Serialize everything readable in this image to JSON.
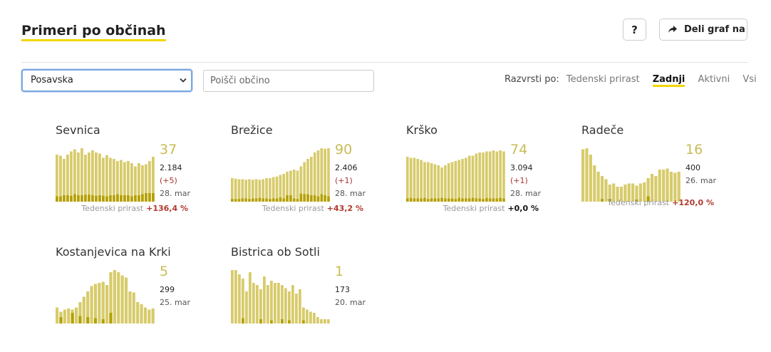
{
  "header": {
    "title": "Primeri po občinah",
    "help_label": "?",
    "share_label": "Deli graf na"
  },
  "filters": {
    "region_value": "Posavska",
    "search_placeholder": "Poišči občino"
  },
  "sort": {
    "label": "Razvrsti po:",
    "options": [
      "Tedenski prirast",
      "Zadnji",
      "Aktivni",
      "Vsi"
    ],
    "active": "Zadnji"
  },
  "colors": {
    "bar": "#d7cb6b",
    "bar_dark": "#b4a100",
    "accent": "#f2d600"
  },
  "cards": [
    {
      "name": "Sevnica",
      "active": "37",
      "total": "2.184",
      "delta": "(+5)",
      "date": "28. mar",
      "growth_label": "Tedenski prirast",
      "growth_value": "+136,4 %",
      "growth_sign": "pos",
      "bars": [
        0.88,
        0.86,
        0.8,
        0.88,
        0.94,
        0.98,
        0.92,
        1.0,
        0.88,
        0.92,
        0.96,
        0.92,
        0.9,
        0.82,
        0.87,
        0.82,
        0.8,
        0.76,
        0.78,
        0.74,
        0.76,
        0.72,
        0.66,
        0.72,
        0.68,
        0.7,
        0.76,
        0.84
      ],
      "dark": [
        0.1,
        0.1,
        0.12,
        0.12,
        0.11,
        0.14,
        0.12,
        0.12,
        0.13,
        0.13,
        0.12,
        0.11,
        0.12,
        0.11,
        0.1,
        0.12,
        0.12,
        0.14,
        0.12,
        0.12,
        0.12,
        0.1,
        0.12,
        0.12,
        0.14,
        0.16,
        0.16,
        0.16
      ]
    },
    {
      "name": "Brežice",
      "active": "90",
      "total": "2.406",
      "delta": "(+1)",
      "date": "28. mar",
      "growth_label": "Tedenski prirast",
      "growth_value": "+43,2 %",
      "growth_sign": "pos",
      "bars": [
        0.44,
        0.43,
        0.42,
        0.42,
        0.41,
        0.42,
        0.41,
        0.42,
        0.41,
        0.42,
        0.44,
        0.44,
        0.46,
        0.47,
        0.5,
        0.52,
        0.56,
        0.58,
        0.6,
        0.58,
        0.66,
        0.74,
        0.8,
        0.84,
        0.92,
        0.96,
        1.0,
        0.99,
        1.0
      ],
      "dark": [
        0.05,
        0.05,
        0.05,
        0.06,
        0.06,
        0.05,
        0.06,
        0.06,
        0.07,
        0.06,
        0.06,
        0.05,
        0.06,
        0.06,
        0.08,
        0.06,
        0.12,
        0.12,
        0.06,
        0.05,
        0.15,
        0.14,
        0.14,
        0.12,
        0.12,
        0.1,
        0.14,
        0.12,
        0.1
      ]
    },
    {
      "name": "Krško",
      "active": "74",
      "total": "3.094",
      "delta": "(+1)",
      "date": "28. mar",
      "growth_label": "Tedenski prirast",
      "growth_value": "+0,0 %",
      "growth_sign": "zero",
      "bars": [
        0.84,
        0.82,
        0.82,
        0.8,
        0.78,
        0.74,
        0.74,
        0.72,
        0.7,
        0.68,
        0.64,
        0.68,
        0.72,
        0.74,
        0.76,
        0.78,
        0.8,
        0.82,
        0.86,
        0.86,
        0.9,
        0.92,
        0.92,
        0.94,
        0.94,
        0.96,
        0.94,
        0.96,
        0.94
      ],
      "dark": [
        0.06,
        0.07,
        0.06,
        0.06,
        0.06,
        0.07,
        0.05,
        0.06,
        0.06,
        0.06,
        0.07,
        0.06,
        0.06,
        0.06,
        0.05,
        0.07,
        0.06,
        0.06,
        0.06,
        0.07,
        0.06,
        0.06,
        0.05,
        0.07,
        0.06,
        0.06,
        0.06,
        0.07,
        0.06
      ]
    },
    {
      "name": "Radeče",
      "active": "16",
      "total": "400",
      "delta": "",
      "date": "26. mar",
      "growth_label": "Tedenski prirast",
      "growth_value": "+120,0 %",
      "growth_sign": "pos",
      "bars": [
        0.98,
        1.0,
        0.88,
        0.68,
        0.56,
        0.48,
        0.42,
        0.32,
        0.34,
        0.28,
        0.28,
        0.32,
        0.34,
        0.34,
        0.3,
        0.34,
        0.36,
        0.44,
        0.52,
        0.48,
        0.6,
        0.6,
        0.62,
        0.56,
        0.54,
        0.56
      ],
      "dark": [
        0.0,
        0.0,
        0.0,
        0.0,
        0.0,
        0.05,
        0.0,
        0.05,
        0.0,
        0.0,
        0.0,
        0.0,
        0.0,
        0.0,
        0.04,
        0.0,
        0.0,
        0.1,
        0.0,
        0.0,
        0.0,
        0.0,
        0.0,
        0.0,
        0.0,
        0.0
      ]
    },
    {
      "name": "Kostanjevica na Krki",
      "active": "5",
      "total": "299",
      "delta": "",
      "date": "25. mar",
      "growth_label": "",
      "growth_value": "",
      "growth_sign": "",
      "bars": [
        0.3,
        0.22,
        0.26,
        0.28,
        0.26,
        0.3,
        0.4,
        0.5,
        0.6,
        0.7,
        0.74,
        0.76,
        0.78,
        0.72,
        0.96,
        1.0,
        0.96,
        0.9,
        0.86,
        0.6,
        0.58,
        0.4,
        0.36,
        0.3,
        0.26,
        0.28
      ],
      "dark": [
        0.0,
        0.12,
        0.0,
        0.0,
        0.2,
        0.0,
        0.14,
        0.0,
        0.12,
        0.0,
        0.1,
        0.0,
        0.08,
        0.0,
        0.2,
        0.0,
        0.0,
        0.0,
        0.0,
        0.0,
        0.0,
        0.0,
        0.0,
        0.0,
        0.0,
        0.0
      ]
    },
    {
      "name": "Bistrica ob Sotli",
      "active": "1",
      "total": "173",
      "delta": "",
      "date": "20. mar",
      "growth_label": "",
      "growth_value": "",
      "growth_sign": "",
      "bars": [
        1.0,
        1.0,
        0.92,
        0.84,
        0.6,
        0.96,
        0.76,
        0.72,
        0.64,
        0.88,
        0.72,
        0.8,
        0.76,
        0.76,
        0.72,
        0.66,
        0.6,
        0.72,
        0.56,
        0.64,
        0.3,
        0.26,
        0.22,
        0.2,
        0.12,
        0.08,
        0.08,
        0.08
      ],
      "dark": [
        0.0,
        0.0,
        0.0,
        0.1,
        0.0,
        0.0,
        0.0,
        0.0,
        0.08,
        0.0,
        0.0,
        0.06,
        0.0,
        0.0,
        0.08,
        0.0,
        0.06,
        0.0,
        0.0,
        0.0,
        0.06,
        0.0,
        0.0,
        0.0,
        0.0,
        0.0,
        0.0,
        0.0
      ]
    }
  ]
}
